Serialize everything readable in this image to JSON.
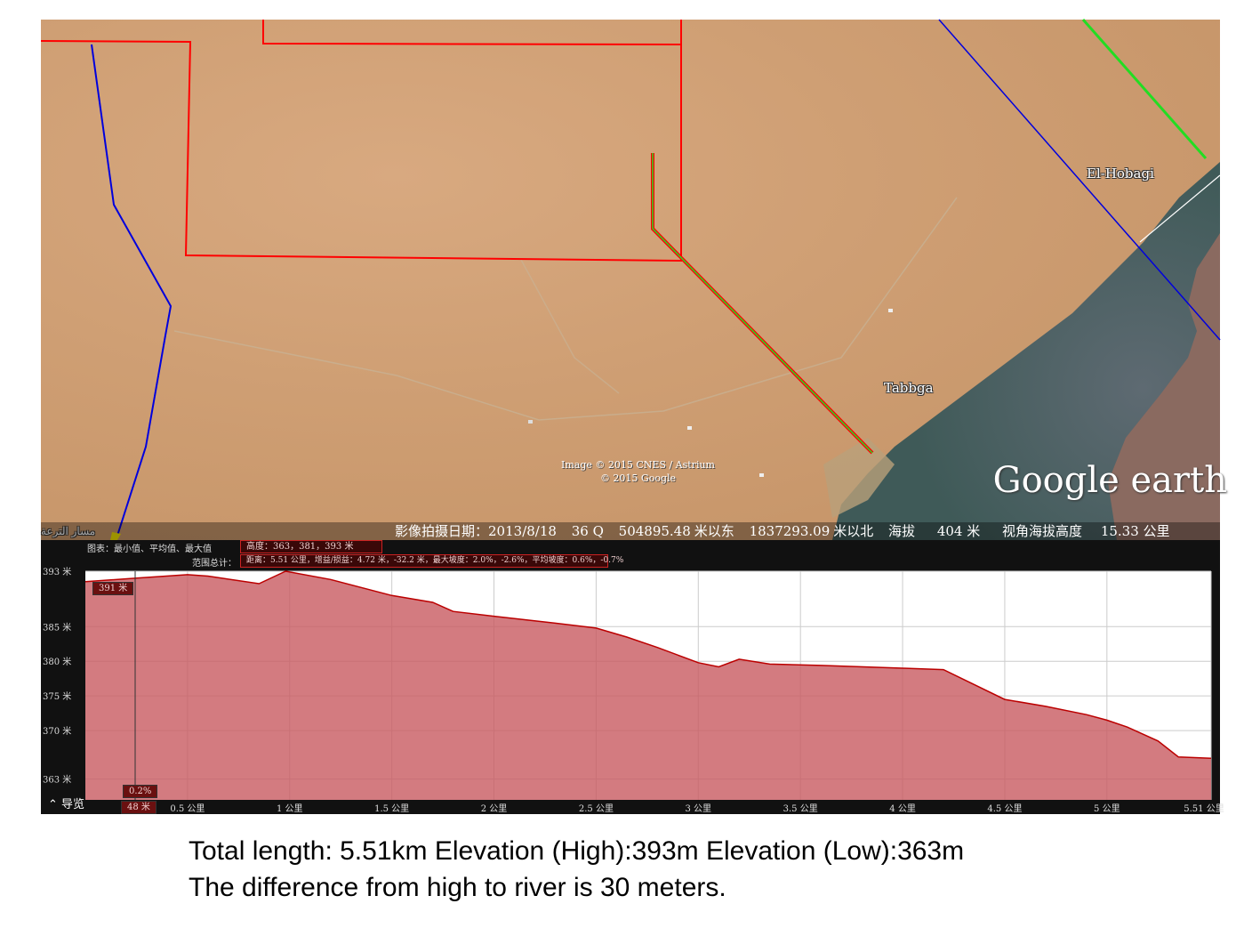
{
  "map": {
    "labels": {
      "place_1": "El-Hobagi",
      "place_2": "Tabbga",
      "arabic_label": "مسار الترعة"
    },
    "copyright": {
      "line1": "Image © 2015 CNES / Astrium",
      "line2": "© 2015 Google"
    },
    "logo": "Google earth",
    "status": {
      "date_label": "影像拍摄日期：",
      "date_value": "2013/8/18",
      "zone": "36 Q",
      "easting": "504895.48",
      "easting_unit": "米以东",
      "northing": "1837293.09",
      "northing_unit": "米以北",
      "altitude_label": "海拔",
      "altitude_value": "404 米",
      "eye_label": "视角海拔高度",
      "eye_value": "15.33 公里"
    },
    "colors": {
      "red_boundary": "#ff0000",
      "blue_line": "#0000dd",
      "green_line": "#22dd22"
    }
  },
  "profile": {
    "header_label_1": "图表：最小值、平均值、最大值",
    "header_value_1": "高度：363，381，393 米",
    "header_label_2": "范围总计：",
    "header_value_2": "距离：5.51 公里，增益/损益：4.72 米，-32.2 米，最大坡度：2.0%，-2.6%，平均坡度：0.6%，-0.7%",
    "cursor_elevation": "391 米",
    "cursor_slope": "0.2%",
    "cursor_distance": "48 米",
    "nav_label": "导览",
    "colors": {
      "fill": "#c85a60",
      "line": "#bb0000",
      "grid": "#cccccc"
    }
  },
  "chart_data": {
    "type": "area",
    "xlabel": "",
    "ylabel": "",
    "x_unit": "公里",
    "y_unit": "米",
    "xlim": [
      0,
      5.51
    ],
    "ylim": [
      360,
      393
    ],
    "x_ticks": [
      0.5,
      1,
      1.5,
      2,
      2.5,
      3,
      3.5,
      4,
      4.5,
      5,
      5.51
    ],
    "x_tick_labels": [
      "0.5 公里",
      "1 公里",
      "1.5 公里",
      "2 公里",
      "2.5 公里",
      "3 公里",
      "3.5 公里",
      "4 公里",
      "4.5 公里",
      "5 公里",
      "5.51 公里"
    ],
    "y_ticks": [
      393,
      385,
      380,
      375,
      370,
      363
    ],
    "y_tick_labels": [
      "393 米",
      "385 米",
      "380 米",
      "375 米",
      "370 米",
      "363 米"
    ],
    "grid": true,
    "series": [
      {
        "x": [
          0,
          0.25,
          0.5,
          0.6,
          0.85,
          0.98,
          1.2,
          1.5,
          1.7,
          1.8,
          2.0,
          2.3,
          2.5,
          2.65,
          2.8,
          3.0,
          3.1,
          3.2,
          3.35,
          3.6,
          4.0,
          4.2,
          4.5,
          4.7,
          4.9,
          5.0,
          5.1,
          5.25,
          5.35,
          5.51
        ],
        "y": [
          391.5,
          392,
          392.5,
          392.3,
          391.2,
          393,
          391.8,
          389.5,
          388.5,
          387.2,
          386.5,
          385.5,
          384.8,
          383.5,
          382,
          379.8,
          379.2,
          380.3,
          379.6,
          379.4,
          379,
          378.8,
          374.5,
          373.5,
          372.3,
          371.5,
          370.5,
          368.5,
          366.2,
          366
        ]
      }
    ]
  },
  "caption": {
    "line1": "Total length: 5.51km  Elevation (High):393m Elevation (Low):363m",
    "line2": "The difference from high to river is 30 meters."
  }
}
